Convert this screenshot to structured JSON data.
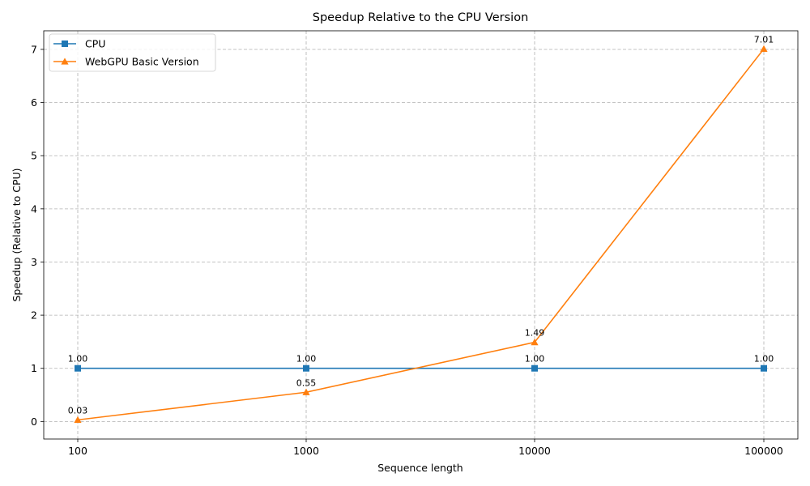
{
  "chart_data": {
    "type": "line",
    "title": "Speedup Relative to the CPU Version",
    "xlabel": "Sequence length",
    "ylabel": "Speedup (Relative to CPU)",
    "x_scale": "log",
    "categories": [
      "100",
      "1000",
      "10000",
      "100000"
    ],
    "ylim": [
      -0.33,
      7.35
    ],
    "yticks": [
      0,
      1,
      2,
      3,
      4,
      5,
      6,
      7
    ],
    "grid": true,
    "legend_position": "top-left",
    "series": [
      {
        "name": "CPU",
        "marker": "square",
        "color": "#1f77b4",
        "values": [
          1.0,
          1.0,
          1.0,
          1.0
        ],
        "labels": [
          "1.00",
          "1.00",
          "1.00",
          "1.00"
        ]
      },
      {
        "name": "WebGPU Basic Version",
        "marker": "triangle",
        "color": "#ff7f0e",
        "values": [
          0.03,
          0.55,
          1.49,
          7.01
        ],
        "labels": [
          "0.03",
          "0.55",
          "1.49",
          "7.01"
        ]
      }
    ]
  }
}
